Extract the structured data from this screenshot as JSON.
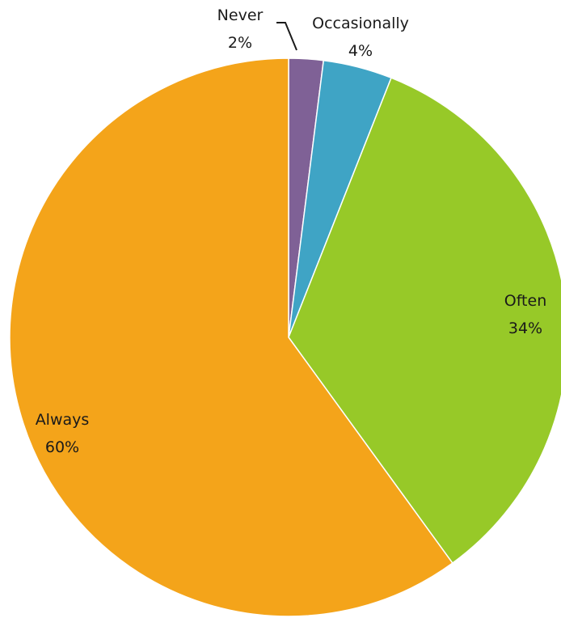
{
  "chart_data": {
    "type": "pie",
    "title": "",
    "start_angle_deg": 0,
    "direction": "clockwise",
    "legend": "none",
    "slices": [
      {
        "name": "Never",
        "value": 2,
        "label": "2%",
        "color": "#7f6196"
      },
      {
        "name": "Occasionally",
        "value": 4,
        "label": "4%",
        "color": "#3fa4c5"
      },
      {
        "name": "Often",
        "value": 34,
        "label": "34%",
        "color": "#97c928"
      },
      {
        "name": "Always",
        "value": 60,
        "label": "60%",
        "color": "#f4a41a"
      }
    ]
  }
}
